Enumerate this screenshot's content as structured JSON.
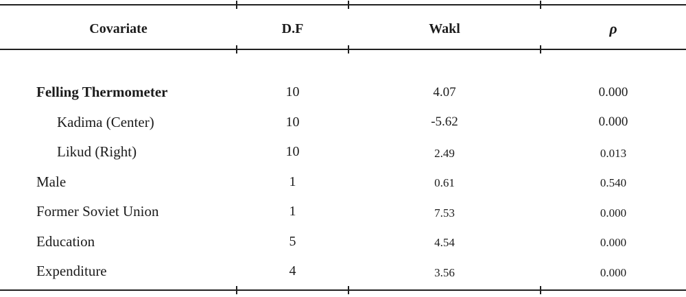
{
  "table": {
    "columns": {
      "covariate": "Covariate",
      "df": "D.F",
      "wakl": "Wakl",
      "rho": "ρ"
    },
    "rows": [
      {
        "covariate": "Felling Thermometer",
        "df": "10",
        "wakl": "4.07",
        "rho": "0.000"
      },
      {
        "covariate": "Kadima (Center)",
        "df": "10",
        "wakl": "-5.62",
        "rho": "0.000"
      },
      {
        "covariate": "Likud (Right)",
        "df": "10",
        "wakl": "2.49",
        "rho": "0.013"
      },
      {
        "covariate": "Male",
        "df": "1",
        "wakl": "0.61",
        "rho": "0.540"
      },
      {
        "covariate": "Former Soviet Union",
        "df": "1",
        "wakl": "7.53",
        "rho": "0.000"
      },
      {
        "covariate": "Education",
        "df": "5",
        "wakl": "4.54",
        "rho": "0.000"
      },
      {
        "covariate": "Expenditure",
        "df": "4",
        "wakl": "3.56",
        "rho": "0.000"
      }
    ]
  },
  "colors": {
    "background": "#ffffff",
    "text": "#1b1b1b",
    "rule": "#1f1f1f"
  }
}
